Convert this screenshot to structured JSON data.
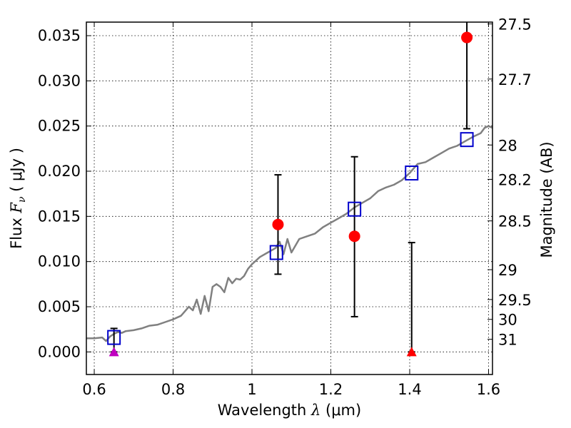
{
  "chart_data": {
    "type": "scatter",
    "title": "",
    "xlabel": {
      "prefix": "Wavelength  ",
      "sym": "λ",
      "suffix": " (μm)"
    },
    "ylabel": {
      "prefix": "Flux  ",
      "sym": "F",
      "sub": "ν",
      "suffix": "  ( μJy )"
    },
    "y2label": "Magnitude (AB)",
    "xlim": [
      0.58,
      1.61
    ],
    "ylim": [
      -0.0025,
      0.0365
    ],
    "grid": true,
    "xticks": [
      0.6,
      0.8,
      1.0,
      1.2,
      1.4,
      1.6
    ],
    "xtick_labels": [
      "0.6",
      "0.8",
      "1",
      "1.2",
      "1.4",
      "1.6"
    ],
    "yticks": [
      0.0,
      0.005,
      0.01,
      0.015,
      0.02,
      0.025,
      0.03,
      0.035
    ],
    "ytick_labels": [
      "0.000",
      "0.005",
      "0.010",
      "0.015",
      "0.020",
      "0.025",
      "0.030",
      "0.035"
    ],
    "mag_ticks": [
      {
        "label": "27.5",
        "flux": 0.0363
      },
      {
        "label": "27.7",
        "flux": 0.0302
      },
      {
        "label": "28",
        "flux": 0.0229
      },
      {
        "label": "28.2",
        "flux": 0.0191
      },
      {
        "label": "28.5",
        "flux": 0.0145
      },
      {
        "label": "29",
        "flux": 0.0091
      },
      {
        "label": "29.5",
        "flux": 0.0058
      },
      {
        "label": "30",
        "flux": 0.0036
      },
      {
        "label": "31",
        "flux": 0.0014
      }
    ],
    "model_spectrum": {
      "color": "#808080",
      "x": [
        0.58,
        0.6,
        0.62,
        0.63,
        0.64,
        0.65,
        0.66,
        0.67,
        0.68,
        0.7,
        0.72,
        0.74,
        0.76,
        0.78,
        0.8,
        0.82,
        0.84,
        0.85,
        0.86,
        0.87,
        0.88,
        0.89,
        0.9,
        0.91,
        0.92,
        0.93,
        0.94,
        0.95,
        0.96,
        0.97,
        0.98,
        0.99,
        1.0,
        1.02,
        1.04,
        1.06,
        1.07,
        1.08,
        1.09,
        1.1,
        1.12,
        1.14,
        1.16,
        1.18,
        1.2,
        1.22,
        1.24,
        1.26,
        1.28,
        1.3,
        1.32,
        1.34,
        1.36,
        1.38,
        1.4,
        1.42,
        1.44,
        1.46,
        1.48,
        1.5,
        1.52,
        1.54,
        1.56,
        1.58,
        1.59,
        1.6,
        1.61
      ],
      "y": [
        0.0015,
        0.0015,
        0.0016,
        0.0012,
        0.0017,
        0.002,
        0.0022,
        0.0021,
        0.0023,
        0.0024,
        0.0026,
        0.0029,
        0.003,
        0.0033,
        0.0036,
        0.004,
        0.005,
        0.0046,
        0.0058,
        0.0042,
        0.0062,
        0.0045,
        0.0072,
        0.0075,
        0.0072,
        0.0066,
        0.0082,
        0.0076,
        0.0081,
        0.008,
        0.0084,
        0.0092,
        0.0097,
        0.0105,
        0.011,
        0.0115,
        0.0122,
        0.0108,
        0.0125,
        0.011,
        0.0125,
        0.0128,
        0.0131,
        0.0138,
        0.0143,
        0.0148,
        0.0153,
        0.016,
        0.0165,
        0.017,
        0.0178,
        0.0182,
        0.0185,
        0.019,
        0.0198,
        0.0208,
        0.021,
        0.0215,
        0.022,
        0.0225,
        0.0228,
        0.0233,
        0.0238,
        0.0242,
        0.0248,
        0.025,
        0.0248
      ]
    },
    "observed": {
      "color": "#ff0000",
      "points": [
        {
          "x": 1.066,
          "y": 0.0141,
          "yerr_low": 0.0086,
          "yerr_high": 0.0196
        },
        {
          "x": 1.26,
          "y": 0.0128,
          "yerr_low": 0.0039,
          "yerr_high": 0.0216
        },
        {
          "x": 1.545,
          "y": 0.0348,
          "yerr_low": 0.0247,
          "yerr_high": 0.0365
        }
      ]
    },
    "upper_limits": [
      {
        "x": 0.65,
        "y": 0.0,
        "color": "#bf00bf",
        "err_top": 0.0026
      },
      {
        "x": 1.405,
        "y": 0.0,
        "color": "#ff0000",
        "err_top": 0.0121
      }
    ],
    "synthetic_photometry": {
      "color": "#0000cc",
      "points": [
        {
          "x": 0.65,
          "y": 0.0016
        },
        {
          "x": 1.062,
          "y": 0.011
        },
        {
          "x": 1.26,
          "y": 0.0158
        },
        {
          "x": 1.405,
          "y": 0.0198
        },
        {
          "x": 1.545,
          "y": 0.0235
        }
      ]
    }
  }
}
